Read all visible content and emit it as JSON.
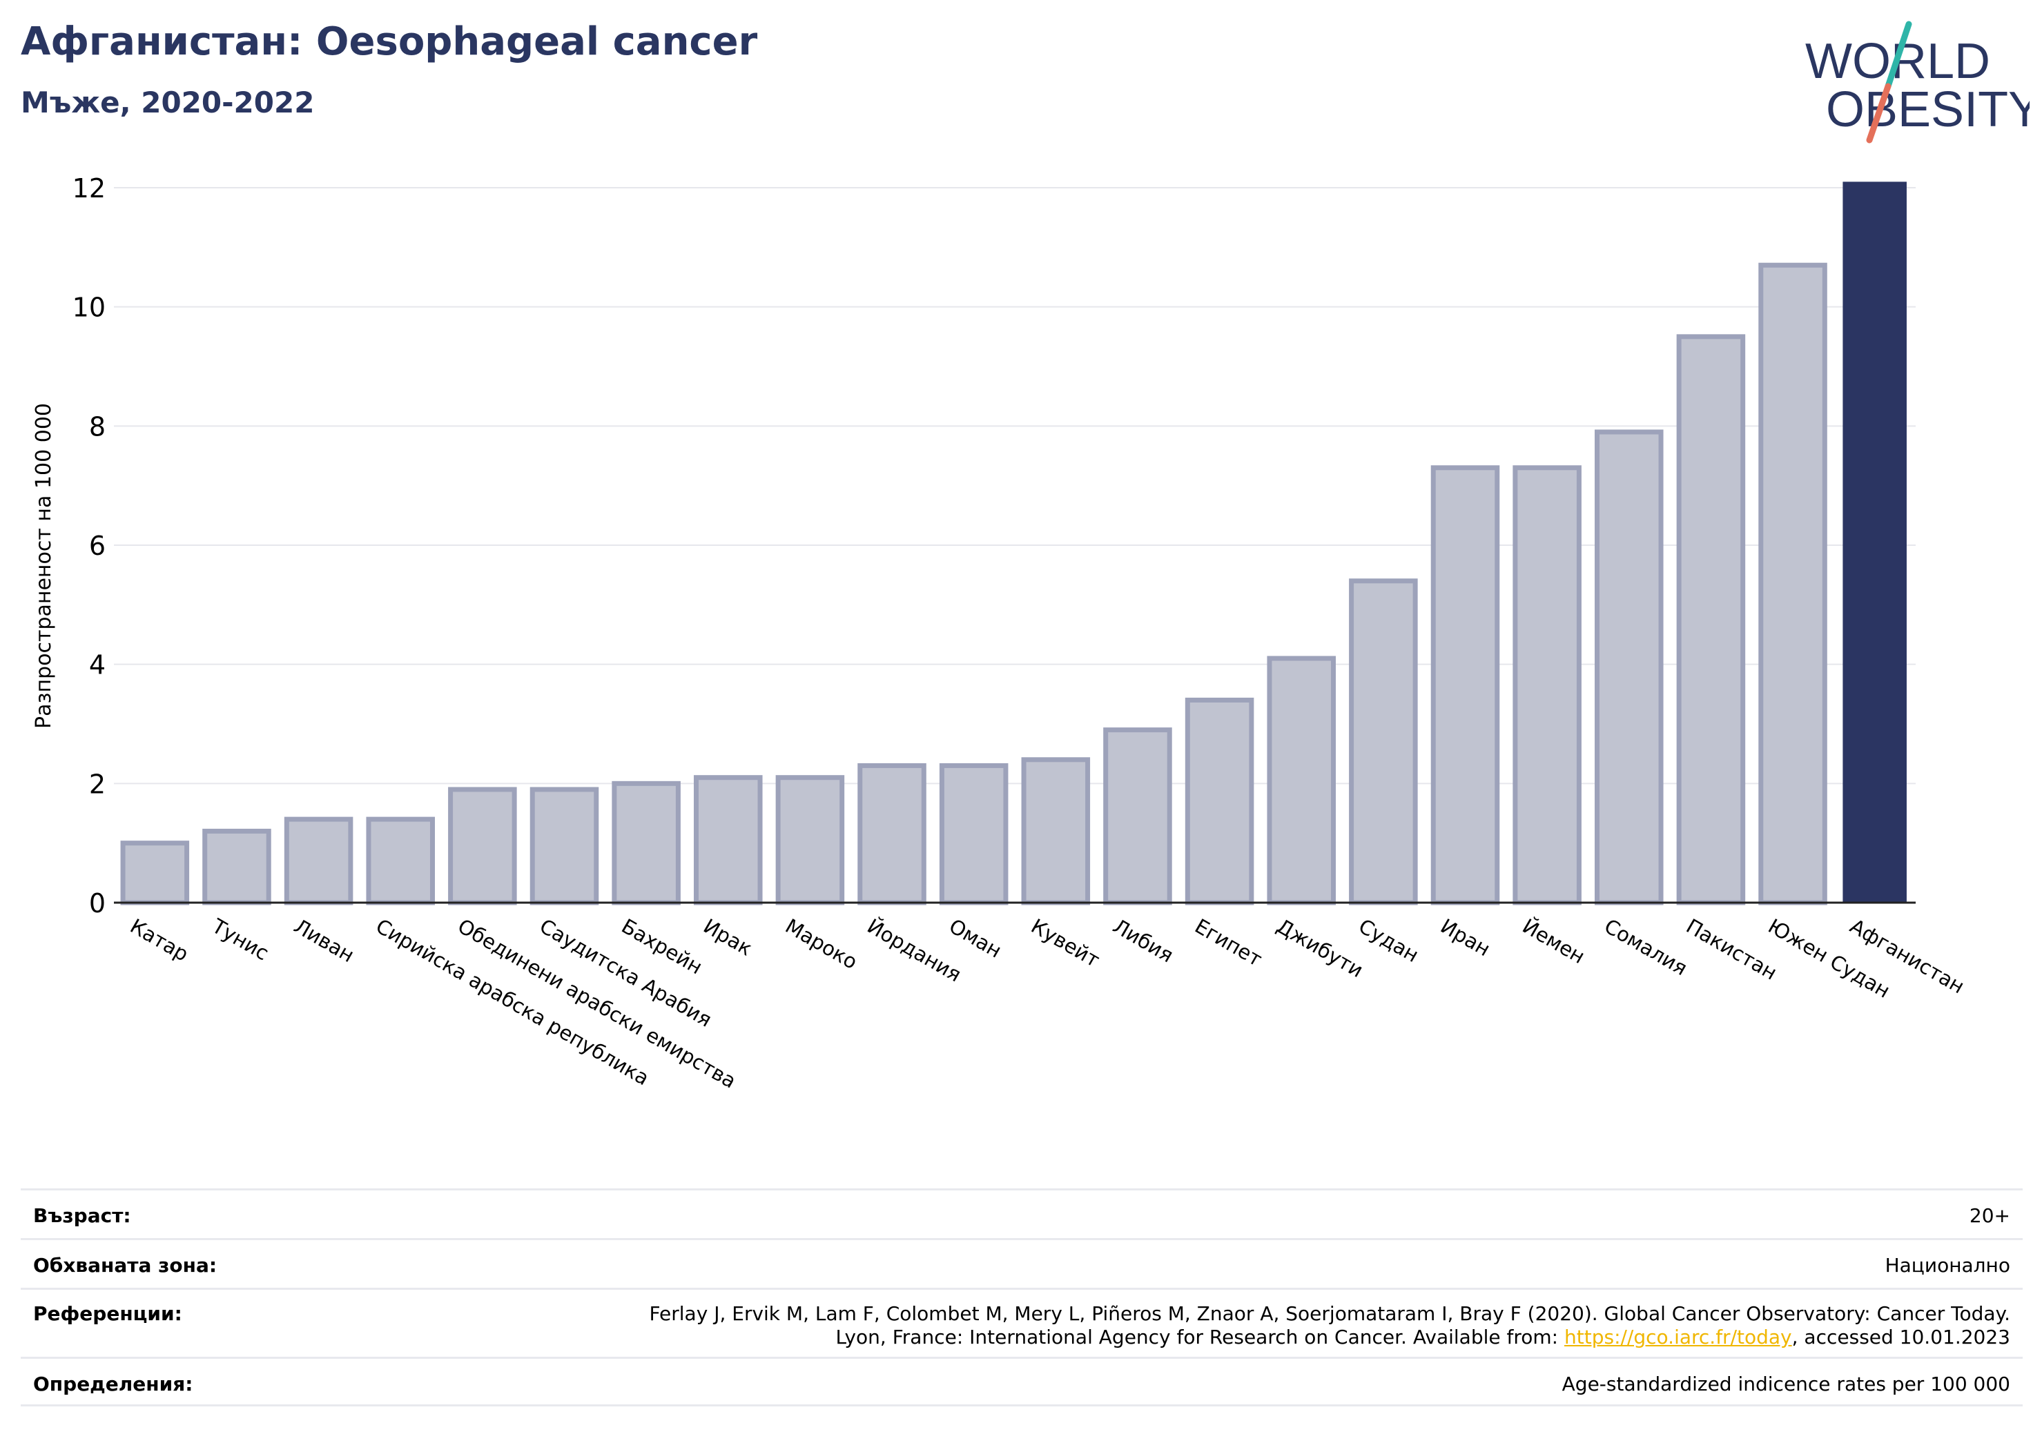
{
  "header": {
    "title": "Афганистан: Oesophageal cancer",
    "subtitle": "Мъже, 2020-2022"
  },
  "logo": {
    "line1": "WORLD",
    "line2": "OBESITY"
  },
  "colors": {
    "highlight": "#2b3562",
    "bar_fill": "#c0c3d0",
    "bar_stroke": "#9da2ba",
    "title": "#2a3661",
    "grid": "#e6e7ec",
    "logo_teal": "#2fb5a8",
    "logo_coral": "#e4705a"
  },
  "chart_data": {
    "type": "bar",
    "ylabel": "Разпространеност  на 100 000",
    "ylim": [
      0,
      12
    ],
    "yticks": [
      0,
      2,
      4,
      6,
      8,
      10,
      12
    ],
    "grid": true,
    "categories": [
      "Катар",
      "Тунис",
      "Ливан",
      "Сирийска арабска република",
      "Обединени арабски емирства",
      "Саудитска Арабия",
      "Бахрейн",
      "Ирак",
      "Мароко",
      "Йордания",
      "Оман",
      "Кувейт",
      "Либия",
      "Египет",
      "Джибути",
      "Судан",
      "Иран",
      "Йемен",
      "Сомалия",
      "Пакистан",
      "Южен Судан",
      "Афганистан"
    ],
    "values": [
      1.0,
      1.2,
      1.4,
      1.4,
      1.9,
      1.9,
      2.0,
      2.1,
      2.1,
      2.3,
      2.3,
      2.4,
      2.9,
      3.4,
      4.1,
      5.4,
      7.3,
      7.3,
      7.9,
      9.5,
      10.7,
      12.1
    ],
    "highlight": "Афганистан"
  },
  "info": {
    "age_label": "Възраст:",
    "age_value": "20+",
    "coverage_label": "Обхваната зона:",
    "coverage_value": "Национално",
    "refs_label": "Референции:",
    "refs_line1": "Ferlay J, Ervik M, Lam F, Colombet M, Mery L, Piñeros M, Znaor A, Soerjomataram I, Bray F (2020). Global Cancer Observatory: Cancer Today.",
    "refs_line2_pre": "Lyon, France: International Agency for Research on Cancer. Available from: ",
    "refs_link": "https://gco.iarc.fr/today",
    "refs_line2_post": ", accessed 10.01.2023",
    "defs_label": "Определения:",
    "defs_value": "Age-standardized indicence rates per 100 000"
  }
}
